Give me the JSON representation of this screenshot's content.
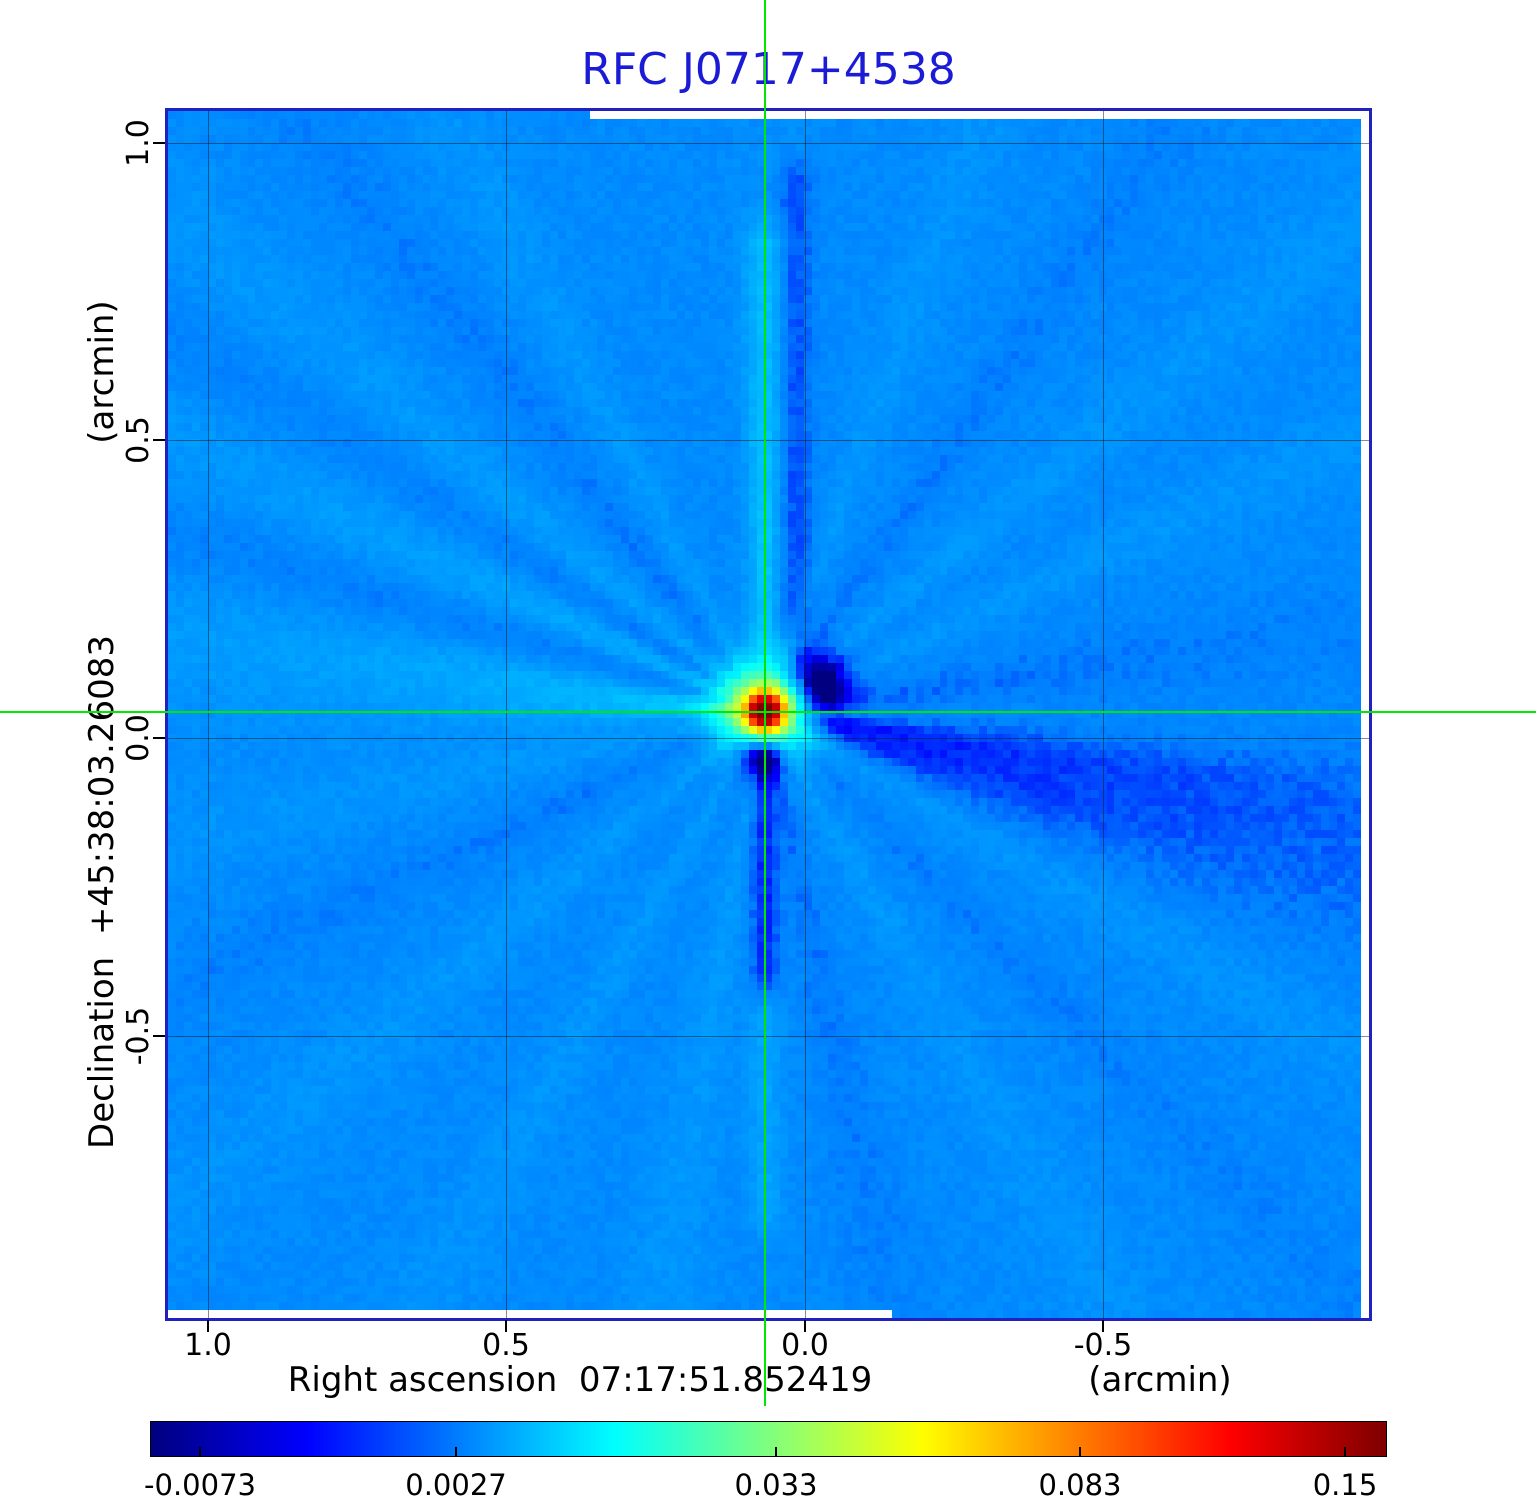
{
  "title": "RFC J0717+4538",
  "colors": {
    "title": "#1b1bd6",
    "frame": "#2121c0",
    "crosshair": "#00e800",
    "grid": "#1a1a1a",
    "text": "#000000",
    "background": "#ffffff"
  },
  "x_axis": {
    "label": "Right ascension  07:17:51.852419",
    "unit": "(arcmin)",
    "ticks": [
      "1.0",
      "0.5",
      "0.0",
      "-0.5"
    ]
  },
  "y_axis": {
    "label": "Declination  +45:38:03.26083",
    "unit": "(arcmin)",
    "ticks": [
      "1.0",
      "0.5",
      "0.0",
      "-0.5"
    ]
  },
  "colorbar": {
    "colormap": "jet",
    "tick_labels": [
      "-0.0073",
      "0.0027",
      "0.033",
      "0.083",
      "0.15"
    ],
    "tick_positions": [
      0.04,
      0.247,
      0.506,
      0.752,
      0.967
    ]
  },
  "chart_data": {
    "type": "heatmap",
    "title": "RFC J0717+4538",
    "xlabel": "Right ascension 07:17:51.852419 (arcmin)",
    "ylabel": "Declination +45:38:03.26083 (arcmin)",
    "x_range": [
      1.067,
      -0.945
    ],
    "y_range": [
      1.053,
      -0.973
    ],
    "x_ticks": [
      1.0,
      0.5,
      0.0,
      -0.5
    ],
    "y_ticks": [
      1.0,
      0.5,
      0.0,
      -0.5
    ],
    "grid": true,
    "legend": "colorbar-bottom",
    "colormap": "jet",
    "scale_anchors": [
      -0.0073,
      0.0027,
      0.033,
      0.083,
      0.15
    ],
    "source_position_arcmin": [
      0.067,
      0.045
    ],
    "peak_value": 0.15,
    "background_value": 0.004,
    "min_value": -0.0073,
    "render": {
      "grid_n": 151,
      "background": 0.004,
      "noise": 0.0009,
      "core": {
        "amp": 0.148,
        "sigma": 0.02
      },
      "halo": {
        "amp": 0.048,
        "sigma": 0.05
      },
      "blobs": [
        [
          0.085,
          0.045,
          0.035,
          -0.022
        ],
        [
          -0.005,
          -0.065,
          0.03,
          -0.026
        ]
      ],
      "bands": [
        [
          0.0,
          0.06,
          0.85,
          0.022,
          0.005
        ],
        [
          0.05,
          0.1,
          0.95,
          0.02,
          -0.0035
        ],
        [
          0.0,
          -0.5,
          -0.04,
          0.016,
          -0.005
        ],
        [
          0.0,
          -0.9,
          -0.45,
          0.02,
          0.003
        ]
      ],
      "rays": [
        [
          -15,
          -0.0065,
          6,
          0.9
        ],
        [
          -8,
          -0.0025,
          3,
          1.5
        ],
        [
          -30,
          0.0018,
          2.5,
          2.0
        ],
        [
          -45,
          -0.0015,
          2.5,
          2.0
        ],
        [
          -60,
          0.002,
          3,
          1.5
        ],
        [
          -78,
          -0.0022,
          3,
          1.2
        ],
        [
          -100,
          0.0022,
          3,
          1.6
        ],
        [
          -120,
          0.0018,
          2.5,
          2.0
        ],
        [
          -140,
          0.002,
          3,
          1.8
        ],
        [
          -155,
          -0.0016,
          2.5,
          2.0
        ],
        [
          -168,
          0.0018,
          3,
          1.8
        ],
        [
          178,
          0.009,
          5,
          0.35
        ],
        [
          172,
          0.0032,
          4,
          1.6
        ],
        [
          163,
          -0.002,
          3,
          1.8
        ],
        [
          155,
          0.0045,
          4,
          1.0
        ],
        [
          148,
          -0.002,
          3,
          1.5
        ],
        [
          140,
          0.0028,
          3,
          1.6
        ],
        [
          128,
          -0.0016,
          2.5,
          2.0
        ],
        [
          118,
          0.002,
          2.5,
          2.0
        ],
        [
          90,
          0.003,
          2.5,
          0.6
        ],
        [
          70,
          0.0018,
          2.5,
          2.0
        ],
        [
          55,
          -0.0016,
          2.5,
          2.0
        ],
        [
          40,
          0.002,
          2.5,
          2.0
        ],
        [
          25,
          0.0018,
          2.5,
          2.0
        ],
        [
          8,
          -0.003,
          4,
          0.8
        ]
      ]
    }
  }
}
